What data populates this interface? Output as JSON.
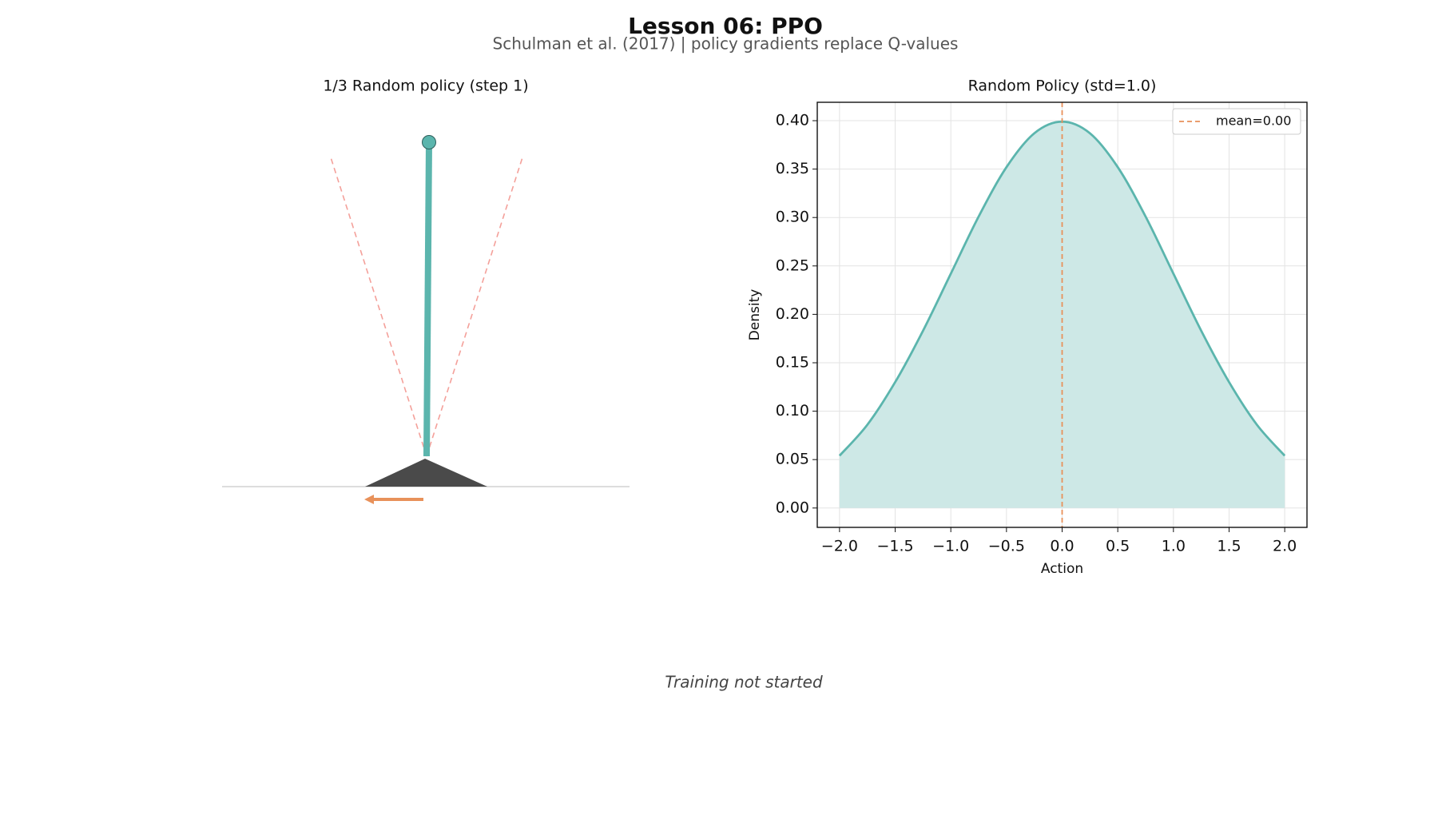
{
  "title": "Lesson 06: PPO",
  "subtitle": "Schulman et al. (2017) | policy gradients replace Q-values",
  "left_panel": {
    "title": "1/3  Random policy (step 1)"
  },
  "status": "Training not started",
  "chart_data": {
    "type": "line",
    "title": "Random Policy (std=1.0)",
    "xlabel": "Action",
    "ylabel": "Density",
    "x": [
      -2,
      -1.75,
      -1.5,
      -1.25,
      -1,
      -0.75,
      -0.5,
      -0.25,
      0,
      0.25,
      0.5,
      0.75,
      1,
      1.25,
      1.5,
      1.75,
      2
    ],
    "series": [
      {
        "name": "",
        "color": "#5bb5ad",
        "fill": "#cde8e6",
        "values": [
          0.054,
          0.086,
          0.13,
          0.183,
          0.242,
          0.301,
          0.352,
          0.387,
          0.399,
          0.387,
          0.352,
          0.301,
          0.242,
          0.183,
          0.13,
          0.086,
          0.054
        ]
      }
    ],
    "vlines": [
      {
        "name": "mean=0.00",
        "x": 0,
        "color": "#e8915a"
      }
    ],
    "xlim": [
      -2.2,
      2.2
    ],
    "ylim": [
      -0.02,
      0.419
    ],
    "xticks": [
      {
        "value": -2,
        "label": "−2.0"
      },
      {
        "value": -1.5,
        "label": "−1.5"
      },
      {
        "value": -1,
        "label": "−1.0"
      },
      {
        "value": -0.5,
        "label": "−0.5"
      },
      {
        "value": 0,
        "label": "0.0"
      },
      {
        "value": 0.5,
        "label": "0.5"
      },
      {
        "value": 1,
        "label": "1.0"
      },
      {
        "value": 1.5,
        "label": "1.5"
      },
      {
        "value": 2,
        "label": "2.0"
      }
    ],
    "yticks": [
      {
        "value": 0,
        "label": "0.00"
      },
      {
        "value": 0.05,
        "label": "0.05"
      },
      {
        "value": 0.1,
        "label": "0.10"
      },
      {
        "value": 0.15,
        "label": "0.15"
      },
      {
        "value": 0.2,
        "label": "0.20"
      },
      {
        "value": 0.25,
        "label": "0.25"
      },
      {
        "value": 0.3,
        "label": "0.30"
      },
      {
        "value": 0.35,
        "label": "0.35"
      },
      {
        "value": 0.4,
        "label": "0.40"
      }
    ],
    "grid": true,
    "legend": "upper right"
  }
}
